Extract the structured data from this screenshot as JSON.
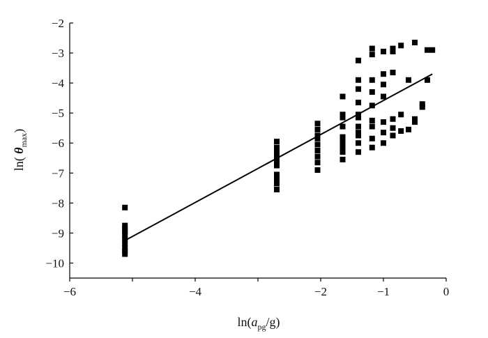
{
  "chart_data": {
    "type": "scatter",
    "title": "",
    "xlabel": {
      "prefix": "ln(",
      "main": "a",
      "sub": "pg",
      "suffix": "/g)"
    },
    "ylabel": {
      "prefix": "ln( ",
      "main": "θ",
      "sub": "max",
      "suffix": ")"
    },
    "xlim": [
      -6,
      0
    ],
    "ylim": [
      -10.5,
      -2
    ],
    "xticks": [
      -6,
      -5,
      -4,
      -3,
      -2,
      -1,
      0
    ],
    "xtick_labels": [
      "−6",
      "",
      "−4",
      "",
      "−2",
      "−1",
      "0"
    ],
    "yticks": [
      -10,
      -9,
      -8,
      -7,
      -6,
      -5,
      -4,
      -3,
      -2
    ],
    "ytick_labels": [
      "−10",
      "−9",
      "−8",
      "−7",
      "−6",
      "−5",
      "−4",
      "−3",
      "−2"
    ],
    "grid": false,
    "legend": "none",
    "marker_color": "#000000",
    "series": [
      {
        "marker": "square",
        "points": [
          [
            -5.12,
            -8.15
          ],
          [
            -5.12,
            -8.75
          ],
          [
            -5.12,
            -8.85
          ],
          [
            -5.12,
            -8.95
          ],
          [
            -5.12,
            -9.05
          ],
          [
            -5.12,
            -9.2
          ],
          [
            -5.12,
            -9.35
          ],
          [
            -5.12,
            -9.5
          ],
          [
            -5.12,
            -9.6
          ],
          [
            -5.12,
            -9.7
          ],
          [
            -2.7,
            -5.95
          ],
          [
            -2.7,
            -6.15
          ],
          [
            -2.7,
            -6.25
          ],
          [
            -2.7,
            -6.35
          ],
          [
            -2.7,
            -6.45
          ],
          [
            -2.7,
            -6.55
          ],
          [
            -2.7,
            -6.65
          ],
          [
            -2.7,
            -6.75
          ],
          [
            -2.7,
            -7.05
          ],
          [
            -2.7,
            -7.2
          ],
          [
            -2.7,
            -7.35
          ],
          [
            -2.7,
            -7.55
          ],
          [
            -2.05,
            -5.35
          ],
          [
            -2.05,
            -5.55
          ],
          [
            -2.05,
            -5.75
          ],
          [
            -2.05,
            -5.85
          ],
          [
            -2.05,
            -6.05
          ],
          [
            -2.05,
            -6.25
          ],
          [
            -2.05,
            -6.45
          ],
          [
            -2.05,
            -6.65
          ],
          [
            -2.05,
            -6.9
          ],
          [
            -1.65,
            -4.45
          ],
          [
            -1.65,
            -5.05
          ],
          [
            -1.65,
            -5.15
          ],
          [
            -1.65,
            -5.45
          ],
          [
            -1.65,
            -5.8
          ],
          [
            -1.65,
            -5.95
          ],
          [
            -1.65,
            -6.05
          ],
          [
            -1.65,
            -6.15
          ],
          [
            -1.65,
            -6.3
          ],
          [
            -1.65,
            -6.55
          ],
          [
            -1.4,
            -3.25
          ],
          [
            -1.4,
            -3.9
          ],
          [
            -1.4,
            -4.2
          ],
          [
            -1.4,
            -4.65
          ],
          [
            -1.4,
            -5.05
          ],
          [
            -1.4,
            -5.15
          ],
          [
            -1.4,
            -5.45
          ],
          [
            -1.4,
            -5.65
          ],
          [
            -1.4,
            -5.75
          ],
          [
            -1.4,
            -6.0
          ],
          [
            -1.4,
            -6.3
          ],
          [
            -1.18,
            -2.85
          ],
          [
            -1.18,
            -3.05
          ],
          [
            -1.18,
            -3.9
          ],
          [
            -1.18,
            -4.3
          ],
          [
            -1.18,
            -4.75
          ],
          [
            -1.18,
            -5.25
          ],
          [
            -1.18,
            -5.45
          ],
          [
            -1.18,
            -5.85
          ],
          [
            -1.18,
            -6.15
          ],
          [
            -1.0,
            -2.95
          ],
          [
            -1.0,
            -3.7
          ],
          [
            -1.0,
            -4.05
          ],
          [
            -1.0,
            -4.45
          ],
          [
            -1.0,
            -5.3
          ],
          [
            -1.0,
            -5.65
          ],
          [
            -1.0,
            -6.0
          ],
          [
            -0.85,
            -2.85
          ],
          [
            -0.85,
            -2.95
          ],
          [
            -0.85,
            -3.65
          ],
          [
            -0.85,
            -5.2
          ],
          [
            -0.85,
            -5.5
          ],
          [
            -0.85,
            -5.75
          ],
          [
            -0.72,
            -2.75
          ],
          [
            -0.72,
            -5.05
          ],
          [
            -0.72,
            -5.6
          ],
          [
            -0.6,
            -3.9
          ],
          [
            -0.6,
            -5.55
          ],
          [
            -0.5,
            -2.65
          ],
          [
            -0.5,
            -5.2
          ],
          [
            -0.5,
            -5.3
          ],
          [
            -0.38,
            -4.7
          ],
          [
            -0.38,
            -4.8
          ],
          [
            -0.3,
            -2.9
          ],
          [
            -0.3,
            -3.9
          ],
          [
            -0.22,
            -2.9
          ]
        ]
      },
      {
        "type": "line",
        "points": [
          [
            -5.12,
            -9.25
          ],
          [
            -0.22,
            -3.7
          ]
        ]
      }
    ]
  }
}
